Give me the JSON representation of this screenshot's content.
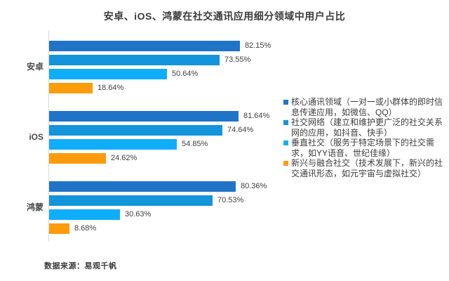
{
  "title": "安卓、iOS、鸿蒙在社交通讯应用细分领域中用户占比",
  "source": "数据来源：易观千帆",
  "colors": {
    "background": "#ffffff",
    "axis_line": "#d9d9d9",
    "title_text": "#3b3b3b",
    "value_label_text": "#3f3f3f",
    "category_text": "#4a4a4a",
    "legend_text": "#3d3d3d"
  },
  "chart_data": {
    "type": "bar",
    "orientation": "horizontal",
    "title": "安卓、iOS、鸿蒙在社交通讯应用细分领域中用户占比",
    "categories": [
      "安卓",
      "iOS",
      "鸿蒙"
    ],
    "series": [
      {
        "name": "核心通讯领域（一对一或小群体的即时信息传递应用，如微信、QQ）",
        "color": "#2074c8",
        "values": [
          82.15,
          81.64,
          80.36
        ]
      },
      {
        "name": "社交网络（建立和维护更广泛的社交关系网的应用，如抖音、快手）",
        "color": "#1295db",
        "values": [
          73.55,
          74.64,
          70.53
        ]
      },
      {
        "name": "垂直社交（服务于特定场景下的社交需求，如YY语音、世纪佳缘）",
        "color": "#0faefc",
        "values": [
          50.64,
          54.85,
          30.63
        ]
      },
      {
        "name": "新兴与融合社交（技术发展下，新兴的社交通讯形态，如元宇宙与虚拟社交）",
        "color": "#fc9c0c",
        "values": [
          18.64,
          24.62,
          8.68
        ]
      }
    ],
    "value_suffix": "%",
    "data_labels": true,
    "xlim": [
      0,
      100
    ],
    "grid": false,
    "legend_position": "right",
    "source": "数据来源：易观千帆"
  }
}
